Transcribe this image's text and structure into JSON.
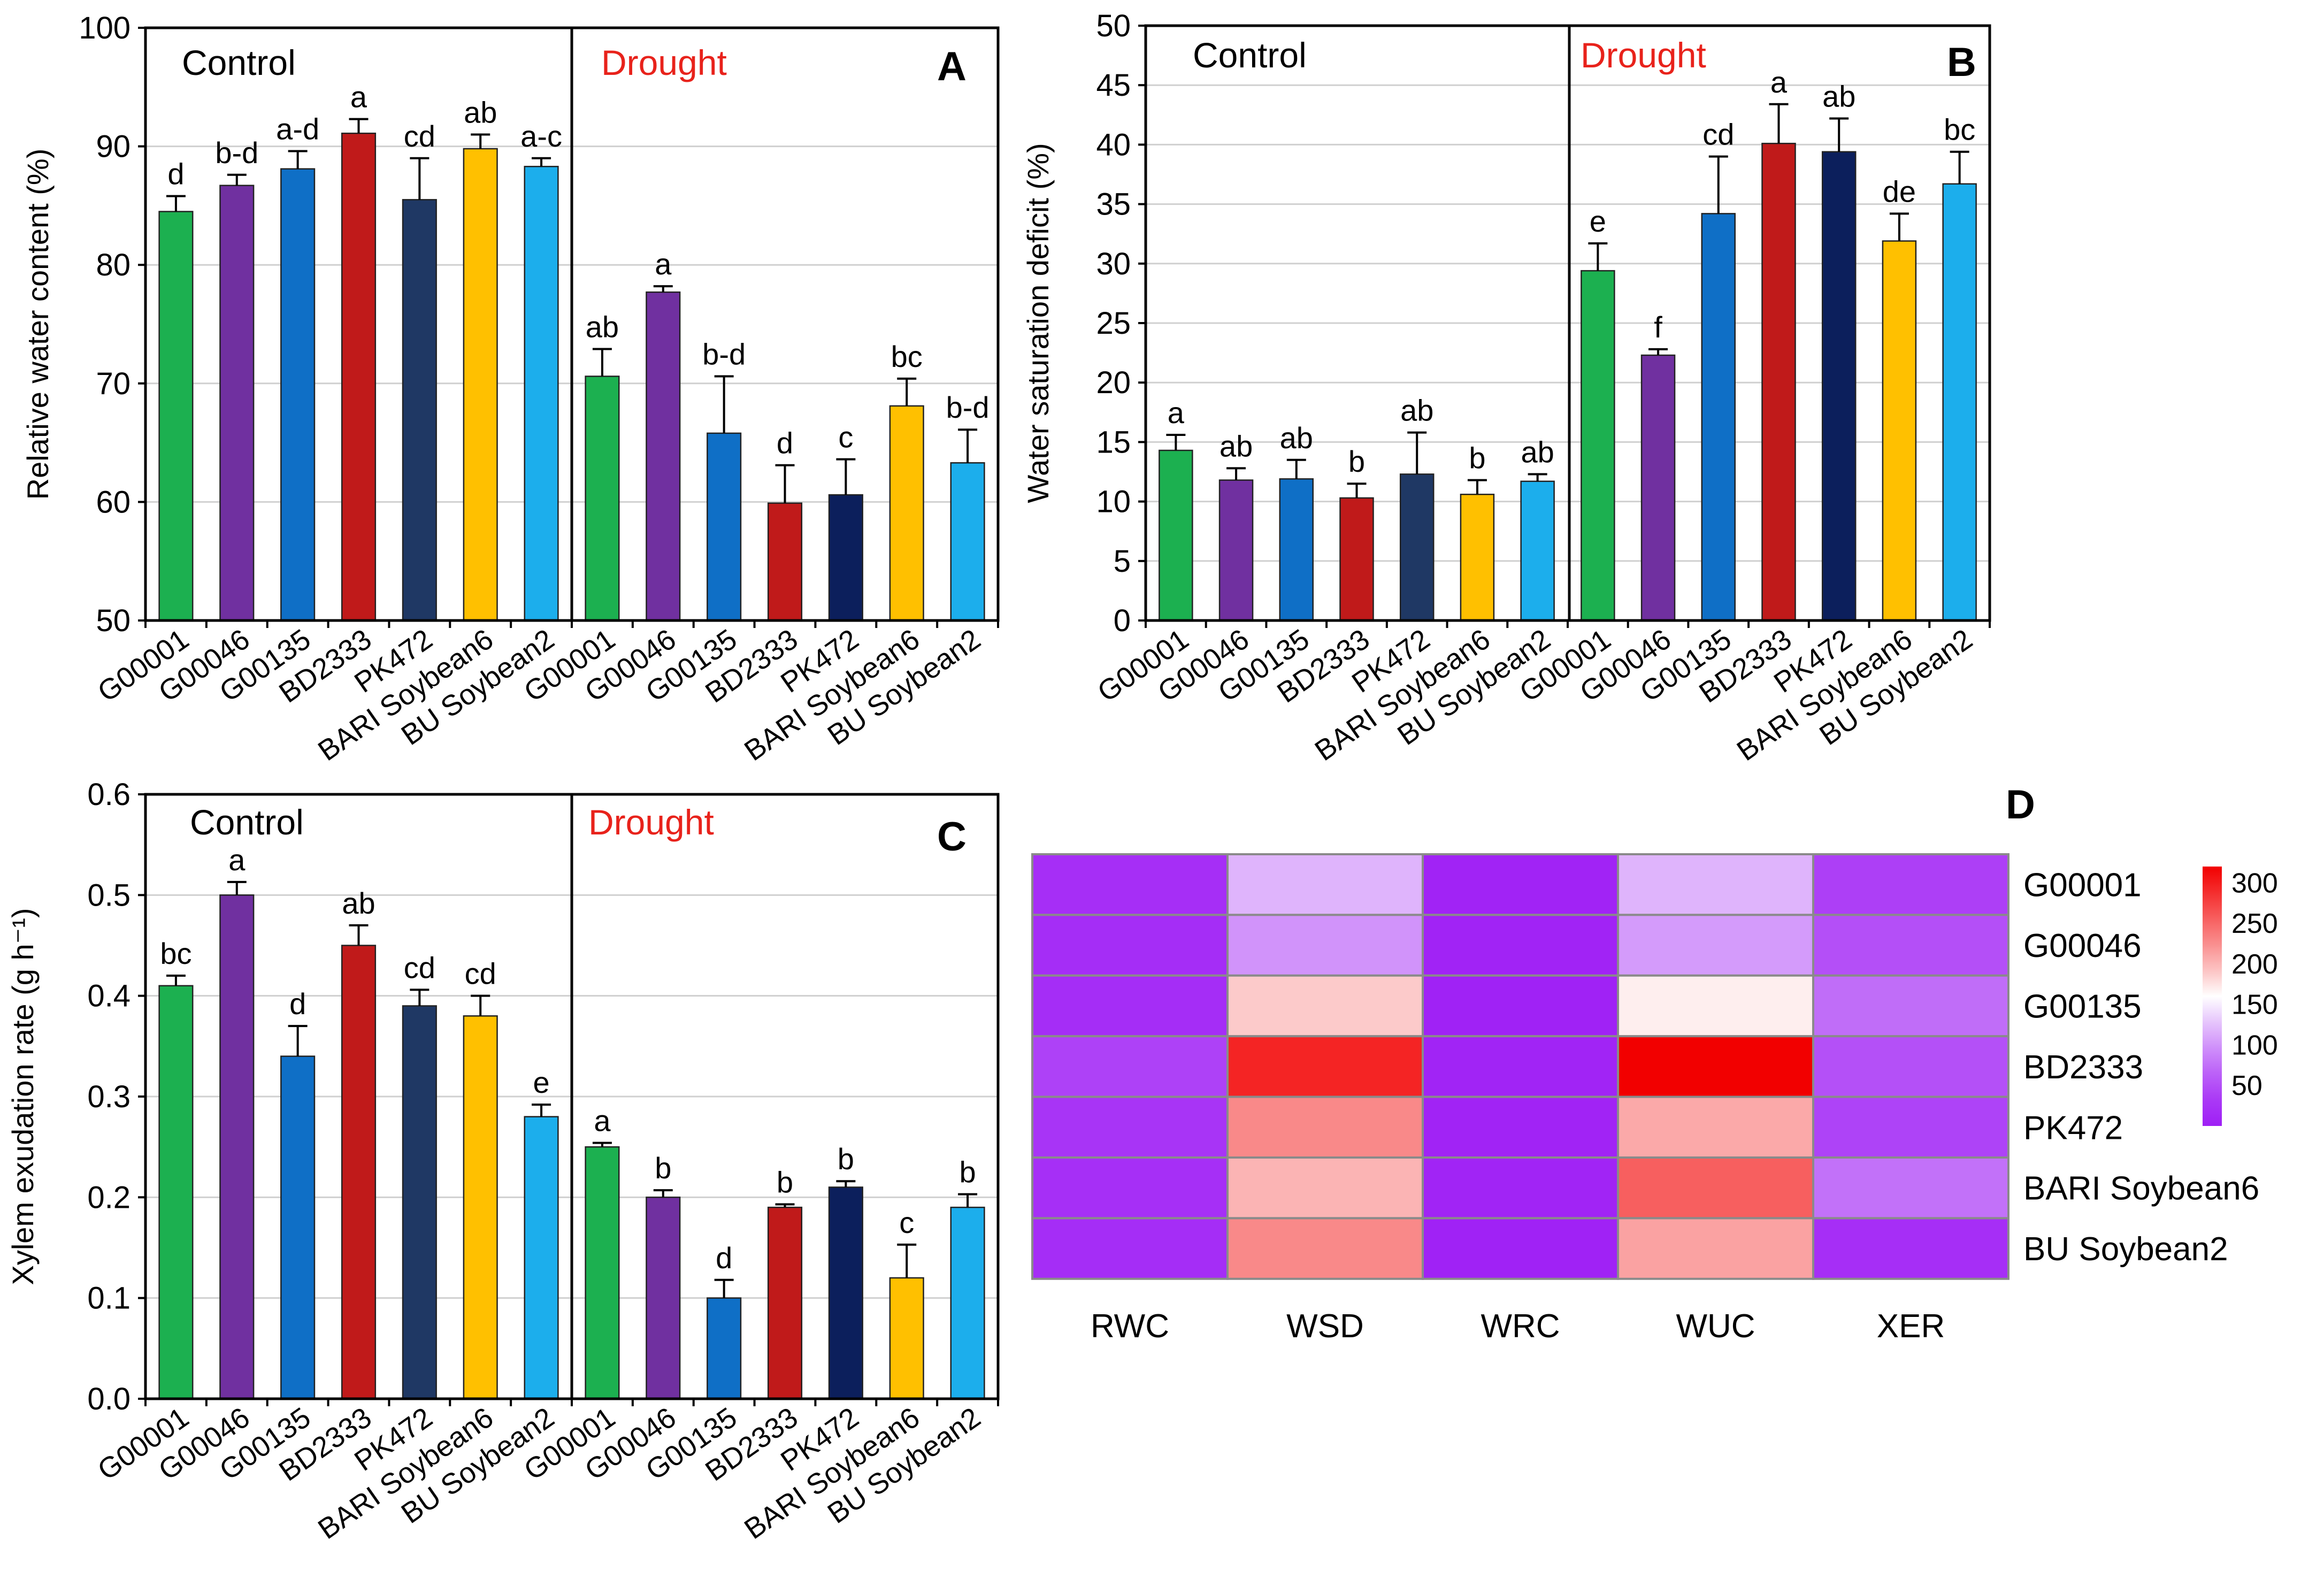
{
  "chart_data": [
    {
      "panel": "A",
      "type": "bar",
      "ylabel": "Relative water content (%)",
      "ylim": [
        50,
        100
      ],
      "yticks": [
        50,
        60,
        70,
        80,
        90,
        100
      ],
      "grid": true,
      "groups": [
        {
          "label": "Control",
          "label_color": "#000000",
          "categories": [
            "G00001",
            "G00046",
            "G00135",
            "BD2333",
            "PK472",
            "BARI Soybean6",
            "BU Soybean2"
          ],
          "values": [
            84.5,
            86.7,
            88.1,
            91.1,
            85.5,
            89.8,
            88.3
          ],
          "errors": [
            1.3,
            0.9,
            1.5,
            1.2,
            3.5,
            1.2,
            0.7
          ],
          "letters": [
            "d",
            "b-d",
            "a-d",
            "a",
            "cd",
            "ab",
            "a-c"
          ]
        },
        {
          "label": "Drought",
          "label_color": "#e8221b",
          "categories": [
            "G00001",
            "G00046",
            "G00135",
            "BD2333",
            "PK472",
            "BARI Soybean6",
            "BU Soybean2"
          ],
          "values": [
            70.6,
            77.7,
            65.8,
            59.9,
            60.6,
            68.1,
            63.3
          ],
          "errors": [
            2.3,
            0.5,
            4.8,
            3.2,
            3.0,
            2.3,
            2.8
          ],
          "letters": [
            "ab",
            "a",
            "b-d",
            "d",
            "c",
            "bc",
            "b-d"
          ]
        }
      ]
    },
    {
      "panel": "B",
      "type": "bar",
      "ylabel": "Water saturation deficit (%)",
      "ylim": [
        0,
        50
      ],
      "yticks": [
        0,
        5,
        10,
        15,
        20,
        25,
        30,
        35,
        40,
        45,
        50
      ],
      "grid": true,
      "groups": [
        {
          "label": "Control",
          "label_color": "#000000",
          "categories": [
            "G00001",
            "G00046",
            "G00135",
            "BD2333",
            "PK472",
            "BARI Soybean6",
            "BU Soybean2"
          ],
          "values": [
            14.3,
            11.8,
            11.9,
            10.3,
            12.3,
            10.6,
            11.7
          ],
          "errors": [
            1.3,
            1.0,
            1.6,
            1.2,
            3.5,
            1.2,
            0.6
          ],
          "letters": [
            "a",
            "ab",
            "ab",
            "b",
            "ab",
            "b",
            "ab"
          ]
        },
        {
          "label": "Drought",
          "label_color": "#e8221b",
          "categories": [
            "G00001",
            "G00046",
            "G00135",
            "BD2333",
            "PK472",
            "BARI Soybean6",
            "BU Soybean2"
          ],
          "values": [
            29.4,
            22.3,
            34.2,
            40.1,
            39.4,
            31.9,
            36.7
          ],
          "errors": [
            2.3,
            0.5,
            4.8,
            3.3,
            2.8,
            2.3,
            2.7
          ],
          "letters": [
            "e",
            "f",
            "cd",
            "a",
            "ab",
            "de",
            "bc"
          ]
        }
      ]
    },
    {
      "panel": "C",
      "type": "bar",
      "ylabel": "Xylem exudation rate  (g h⁻¹)",
      "ylim": [
        0,
        0.6
      ],
      "yticks": [
        0.0,
        0.1,
        0.2,
        0.3,
        0.4,
        0.5,
        0.6
      ],
      "ytick_labels": [
        "0.0",
        "0.1",
        "0.2",
        "0.3",
        "0.4",
        "0.5",
        "0.6"
      ],
      "grid": true,
      "groups": [
        {
          "label": "Control",
          "label_color": "#000000",
          "categories": [
            "G00001",
            "G00046",
            "G00135",
            "BD2333",
            "PK472",
            "BARI Soybean6",
            "BU Soybean2"
          ],
          "values": [
            0.41,
            0.5,
            0.34,
            0.45,
            0.39,
            0.38,
            0.28
          ],
          "errors": [
            0.01,
            0.013,
            0.03,
            0.02,
            0.016,
            0.02,
            0.012
          ],
          "letters": [
            "bc",
            "a",
            "d",
            "ab",
            "cd",
            "cd",
            "e"
          ]
        },
        {
          "label": "Drought",
          "label_color": "#e8221b",
          "categories": [
            "G00001",
            "G00046",
            "G00135",
            "BD2333",
            "PK472",
            "BARI Soybean6",
            "BU Soybean2"
          ],
          "values": [
            0.25,
            0.2,
            0.1,
            0.19,
            0.21,
            0.12,
            0.19
          ],
          "errors": [
            0.004,
            0.007,
            0.018,
            0.003,
            0.006,
            0.033,
            0.013
          ],
          "letters": [
            "a",
            "b",
            "d",
            "b",
            "b",
            "c",
            "b"
          ]
        }
      ]
    },
    {
      "panel": "D",
      "type": "heatmap",
      "columns": [
        "RWC",
        "WSD",
        "WRC",
        "WUC",
        "XER"
      ],
      "rows": [
        "G00001",
        "G00046",
        "G00135",
        "BD2333",
        "PK472",
        "BARI Soybean6",
        "BU Soybean2"
      ],
      "values": [
        [
          22,
          118,
          8,
          118,
          38
        ],
        [
          20,
          98,
          8,
          103,
          51
        ],
        [
          20,
          188,
          7,
          168,
          73
        ],
        [
          40,
          295,
          10,
          320,
          52
        ],
        [
          28,
          228,
          8,
          208,
          41
        ],
        [
          23,
          201,
          9,
          255,
          76
        ],
        [
          21,
          228,
          6,
          212,
          22
        ]
      ],
      "colorbar": {
        "ticks": [
          50,
          100,
          150,
          200,
          250,
          300
        ],
        "min": 0,
        "max": 320,
        "colors": [
          "#9f1ff5",
          "#ffffff",
          "#f20000"
        ]
      }
    }
  ],
  "colors": {
    "bars": [
      "#1cb050",
      "#7030a0",
      "#0f6fc6",
      "#c01a1a",
      "#1f3864",
      "#ffc000",
      "#1caeec"
    ],
    "drought_bars": [
      "#1cb050",
      "#7030a0",
      "#0f6fc6",
      "#c01a1a",
      "#0c1f5c",
      "#ffc000",
      "#1caeec"
    ],
    "grid": "#d0d0d0",
    "drought_label": "#e8221b"
  }
}
